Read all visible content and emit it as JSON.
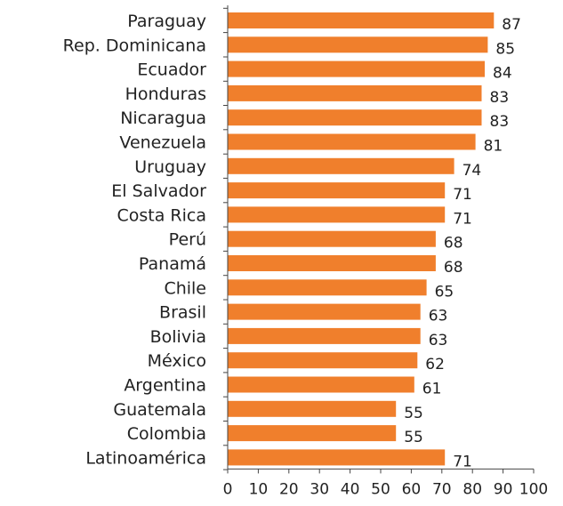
{
  "chart_data": {
    "type": "bar",
    "orientation": "horizontal",
    "categories": [
      "Paraguay",
      "Rep. Dominicana",
      "Ecuador",
      "Honduras",
      "Nicaragua",
      "Venezuela",
      "Uruguay",
      "El Salvador",
      "Costa Rica",
      "Perú",
      "Panamá",
      "Chile",
      "Brasil",
      "Bolivia",
      "México",
      "Argentina",
      "Guatemala",
      "Colombia",
      "Latinoamérica"
    ],
    "values": [
      87,
      85,
      84,
      83,
      83,
      81,
      74,
      71,
      71,
      68,
      68,
      65,
      63,
      63,
      62,
      61,
      55,
      55,
      71
    ],
    "xlim": [
      0,
      100
    ],
    "xticks": [
      0,
      10,
      20,
      30,
      40,
      50,
      60,
      70,
      80,
      90,
      100
    ],
    "grid": false,
    "legend": "none",
    "bar_color": "#F07F2C",
    "title": "",
    "xlabel": "",
    "ylabel": ""
  }
}
